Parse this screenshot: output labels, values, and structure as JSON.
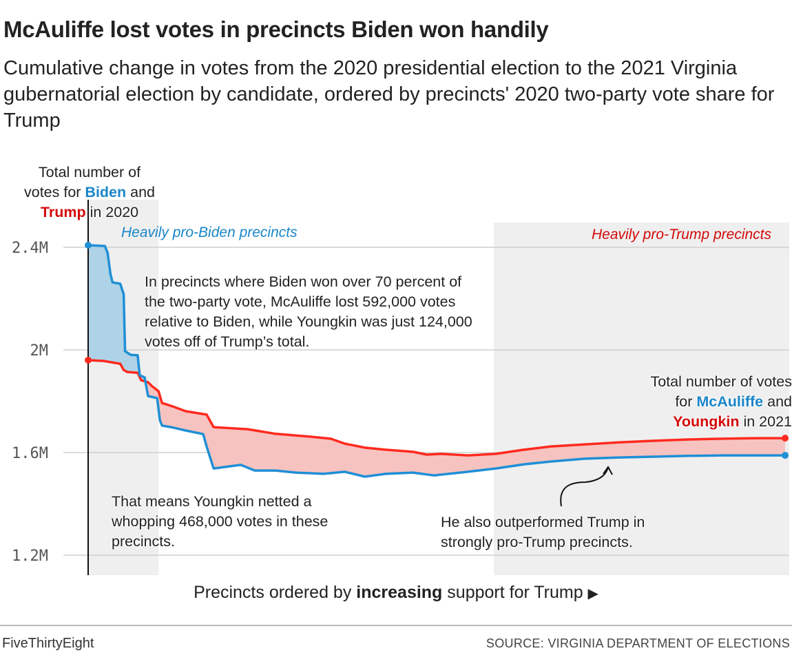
{
  "header": {
    "title": "McAuliffe lost votes in precincts Biden won handily",
    "subtitle": "Cumulative change in votes from the 2020 presidential election to the 2021 Virginia gubernatorial election by candidate, ordered by precincts' 2020 two-party vote share for Trump"
  },
  "chart_data": {
    "type": "line",
    "title": "McAuliffe lost votes in precincts Biden won handily",
    "xlabel": {
      "pre": "Precincts ordered by ",
      "bold": "increasing",
      "post": " support for Trump",
      "arrow": "▶"
    },
    "ylabel": "",
    "ylim": [
      1.15,
      2.5
    ],
    "y_unit": "millions of votes",
    "y_ticks": [
      {
        "value": 2.4,
        "label": "2.4M"
      },
      {
        "value": 2.0,
        "label": "2M"
      },
      {
        "value": 1.6,
        "label": "1.6M"
      },
      {
        "value": 1.2,
        "label": "1.2M"
      }
    ],
    "grid": true,
    "x_range": [
      0,
      100
    ],
    "colors": {
      "dem": "#1f8fd6",
      "rep": "#ff2a1f",
      "dem_fill": "#aed2e6",
      "rep_fill": "#f7c3c0",
      "band": "#efefef"
    },
    "bands": [
      {
        "label": "Heavily pro-Biden precincts",
        "from": 0,
        "to": 10.1,
        "color": "#1a86c8"
      },
      {
        "label": "Heavily pro-Trump precincts",
        "from": 58.2,
        "to": 100,
        "color": "#d30a0a"
      }
    ],
    "series": [
      {
        "key": "dem",
        "x": [
          0,
          2.4,
          2.8,
          3.2,
          3.5,
          4.6,
          5.1,
          5.3,
          6.1,
          7.1,
          7.4,
          8.1,
          8.6,
          9.9,
          10.3,
          10.6,
          11.9,
          14.0,
          16.5,
          17.0,
          18.0,
          21.9,
          23.9,
          26.9,
          29.8,
          33.8,
          36.8,
          39.7,
          42.7,
          46.6,
          49.6,
          54.5,
          58.5,
          62.5,
          66.4,
          71.3,
          76.3,
          81.2,
          86.2,
          91.1,
          96.0,
          100
        ],
        "y": [
          2.408,
          2.405,
          2.378,
          2.295,
          2.263,
          2.258,
          2.217,
          1.995,
          1.981,
          1.979,
          1.901,
          1.893,
          1.82,
          1.812,
          1.726,
          1.705,
          1.699,
          1.686,
          1.672,
          1.624,
          1.538,
          1.552,
          1.53,
          1.53,
          1.522,
          1.517,
          1.525,
          1.506,
          1.517,
          1.522,
          1.511,
          1.525,
          1.538,
          1.554,
          1.565,
          1.576,
          1.581,
          1.584,
          1.587,
          1.589,
          1.589,
          1.589
        ]
      },
      {
        "key": "rep",
        "x": [
          0,
          2.2,
          4.6,
          5.1,
          5.6,
          7.1,
          7.6,
          8.6,
          9.1,
          10.1,
          10.6,
          12.1,
          14.0,
          17.0,
          18.0,
          22.9,
          26.9,
          31.8,
          34.8,
          36.8,
          39.7,
          42.7,
          46.6,
          48.6,
          50.6,
          54.5,
          58.5,
          62.5,
          66.4,
          71.3,
          76.3,
          81.2,
          86.2,
          91.1,
          96.0,
          100
        ],
        "y": [
          1.96,
          1.957,
          1.946,
          1.922,
          1.914,
          1.911,
          1.882,
          1.874,
          1.86,
          1.839,
          1.793,
          1.78,
          1.761,
          1.748,
          1.699,
          1.691,
          1.673,
          1.662,
          1.654,
          1.635,
          1.619,
          1.611,
          1.603,
          1.592,
          1.595,
          1.589,
          1.595,
          1.611,
          1.624,
          1.632,
          1.64,
          1.646,
          1.651,
          1.654,
          1.656,
          1.656
        ]
      }
    ],
    "annotations": {
      "start": {
        "l1": "Total number of",
        "l2a": "votes for ",
        "biden": "Biden",
        "l2b": " and",
        "trump": "Trump",
        "l3": " in 2020"
      },
      "end": {
        "l1": "Total number of votes",
        "l2a": "for ",
        "mcauliffe": "McAuliffe",
        "l2b": " and",
        "youngkin": "Youngkin",
        "l3": " in 2021"
      },
      "biden_note": "In precincts where Biden won over 70 percent of the two-party vote, McAuliffe lost 592,000 votes relative to Biden, while Youngkin was just 124,000 votes off of Trump’s total.",
      "net_note": "That means Youngkin netted a whopping 468,000 votes in these precincts.",
      "trump_note": "He also outperformed Trump in strongly pro-Trump precincts."
    }
  },
  "footer": {
    "brand": "FiveThirtyEight",
    "source": "SOURCE: VIRGINIA DEPARTMENT OF ELECTIONS"
  }
}
